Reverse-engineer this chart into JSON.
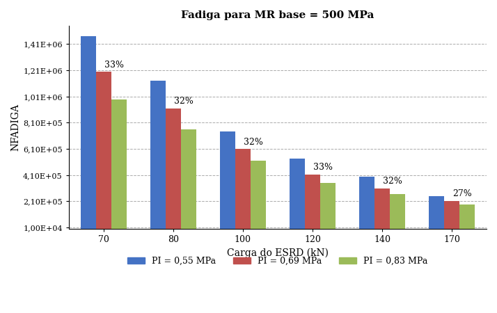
{
  "title": "Fadiga para MR base = 500 MPa",
  "xlabel": "Carga do ESRD (kN)",
  "ylabel": "NFADIGA",
  "categories": [
    70,
    80,
    100,
    120,
    140,
    170
  ],
  "series": {
    "PI = 0,55 MPa": [
      1470000,
      1130000,
      745000,
      535000,
      400000,
      248000
    ],
    "PI = 0,69 MPa": [
      1200000,
      920000,
      610000,
      415000,
      310000,
      215000
    ],
    "PI = 0,83 MPa": [
      990000,
      760000,
      520000,
      350000,
      263000,
      188000
    ]
  },
  "colors": [
    "#4472C4",
    "#C0504D",
    "#9BBB59"
  ],
  "percentages": [
    "33%",
    "32%",
    "32%",
    "33%",
    "32%",
    "27%"
  ],
  "ylim_min": 0,
  "ylim_max": 1550000,
  "yticks": [
    10000,
    210000,
    410000,
    610000,
    810000,
    1010000,
    1210000,
    1410000
  ],
  "ytick_labels": [
    "1,00E+04",
    "2,10E+05",
    "4,10E+05",
    "6,10E+05",
    "8,10E+05",
    "1,01E+06",
    "1,21E+06",
    "1,41E+06"
  ],
  "legend_labels": [
    "PI = 0,55 MPa",
    "PI = 0,69 MPa",
    "PI = 0,83 MPa"
  ],
  "bar_width": 0.22,
  "grid_color": "#AAAAAA",
  "background_color": "#FFFFFF"
}
